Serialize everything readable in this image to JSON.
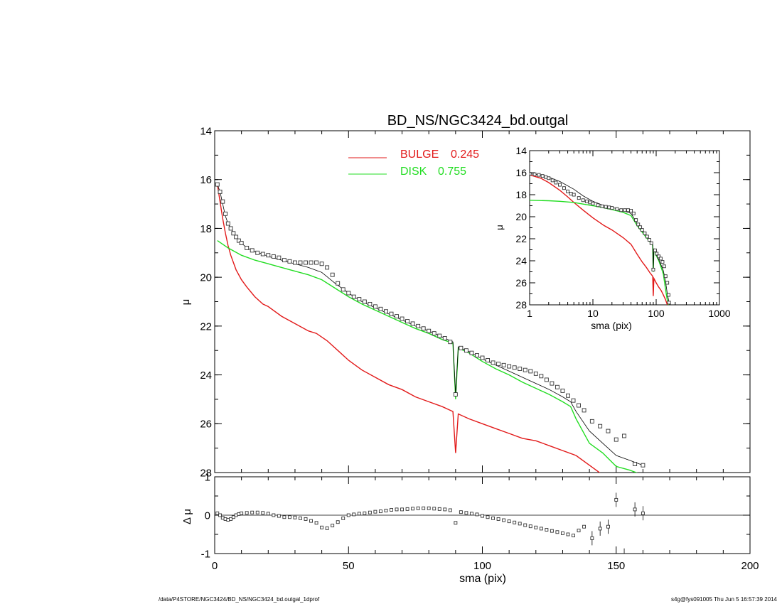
{
  "chart_data": [
    {
      "type": "line",
      "title": "BD_NS/NGC3424_bd.outgal",
      "ylabel": "μ",
      "xlim": [
        0,
        200
      ],
      "ylim": [
        28,
        14
      ],
      "y_inverted": true,
      "x_ticks": [
        "0",
        "50",
        "100",
        "150",
        "200"
      ],
      "y_ticks": [
        "14",
        "16",
        "18",
        "20",
        "22",
        "24",
        "26",
        "28"
      ],
      "legend": {
        "placement": "top-center",
        "entries": [
          {
            "label": "BULGE",
            "value": "0.245",
            "color": "#e21a1a"
          },
          {
            "label": "DISK",
            "value": "0.755",
            "color": "#22dd22"
          }
        ]
      },
      "series": [
        {
          "name": "BULGE",
          "color": "#e21a1a",
          "x": [
            1,
            2,
            3,
            4,
            5,
            6,
            8,
            10,
            12,
            15,
            18,
            20,
            25,
            30,
            35,
            38,
            42,
            46,
            50,
            55,
            60,
            65,
            70,
            75,
            80,
            85,
            89,
            90,
            91,
            95,
            100,
            105,
            110,
            115,
            120,
            125,
            130,
            135,
            140,
            145
          ],
          "y": [
            16.2,
            16.9,
            17.6,
            18.2,
            18.7,
            19.1,
            19.7,
            20.1,
            20.4,
            20.8,
            21.1,
            21.2,
            21.6,
            21.9,
            22.2,
            22.3,
            22.6,
            23.0,
            23.4,
            23.8,
            24.1,
            24.4,
            24.6,
            24.9,
            25.1,
            25.3,
            25.5,
            27.2,
            25.6,
            25.8,
            26.0,
            26.2,
            26.4,
            26.6,
            26.7,
            26.9,
            27.1,
            27.3,
            27.7,
            28.1
          ]
        },
        {
          "name": "DISK",
          "color": "#22dd22",
          "x": [
            1,
            5,
            10,
            15,
            20,
            25,
            30,
            35,
            40,
            45,
            50,
            55,
            60,
            65,
            70,
            75,
            80,
            85,
            89,
            90,
            91,
            95,
            100,
            105,
            110,
            115,
            120,
            125,
            130,
            133,
            135,
            140,
            145,
            150,
            155,
            160
          ],
          "y": [
            18.5,
            18.8,
            19.1,
            19.3,
            19.45,
            19.6,
            19.75,
            19.9,
            20.1,
            20.45,
            20.8,
            21.1,
            21.35,
            21.6,
            21.85,
            22.1,
            22.3,
            22.55,
            22.7,
            25.0,
            22.9,
            23.1,
            23.45,
            23.75,
            24.0,
            24.3,
            24.55,
            24.8,
            25.1,
            25.3,
            25.8,
            26.8,
            27.2,
            27.75,
            27.9,
            28.1
          ]
        },
        {
          "name": "",
          "color": "#000000",
          "x": [
            1,
            2,
            3,
            4,
            5,
            6,
            8,
            10,
            12,
            15,
            18,
            20,
            25,
            30,
            35,
            40,
            45,
            50,
            55,
            60,
            65,
            70,
            75,
            80,
            85,
            89,
            90,
            91,
            95,
            100,
            105,
            110,
            115,
            120,
            125,
            130,
            133,
            135,
            140,
            145,
            150,
            155,
            160
          ],
          "y": [
            16.2,
            16.5,
            17.0,
            17.5,
            17.8,
            18.0,
            18.35,
            18.6,
            18.8,
            18.95,
            19.05,
            19.15,
            19.3,
            19.45,
            19.6,
            19.8,
            20.25,
            20.65,
            21.0,
            21.25,
            21.5,
            21.75,
            22.0,
            22.2,
            22.45,
            22.65,
            24.8,
            22.85,
            23.05,
            23.35,
            23.6,
            23.85,
            24.1,
            24.35,
            24.6,
            24.9,
            25.1,
            25.5,
            26.3,
            26.8,
            27.3,
            27.5,
            27.7
          ]
        },
        {
          "name": "",
          "type": "scatter",
          "marker": "square",
          "x": [
            1,
            2,
            3,
            4,
            5,
            6,
            7,
            8,
            9,
            10,
            12,
            14,
            16,
            18,
            20,
            22,
            24,
            26,
            28,
            30,
            32,
            34,
            36,
            38,
            40,
            42,
            44,
            46,
            48,
            50,
            52,
            54,
            56,
            58,
            60,
            62,
            64,
            66,
            68,
            70,
            72,
            74,
            76,
            78,
            80,
            82,
            84,
            86,
            88,
            90,
            92,
            94,
            96,
            98,
            100,
            102,
            104,
            106,
            108,
            110,
            112,
            114,
            116,
            118,
            120,
            122,
            124,
            126,
            128,
            130,
            132,
            134,
            136,
            138,
            141,
            144,
            147,
            150,
            153,
            157,
            160
          ],
          "y": [
            16.2,
            16.5,
            16.9,
            17.4,
            17.8,
            18.0,
            18.2,
            18.35,
            18.5,
            18.6,
            18.8,
            18.9,
            19.0,
            19.05,
            19.1,
            19.15,
            19.2,
            19.3,
            19.35,
            19.4,
            19.4,
            19.4,
            19.4,
            19.4,
            19.45,
            19.6,
            19.9,
            20.25,
            20.5,
            20.65,
            20.8,
            20.9,
            21.0,
            21.1,
            21.2,
            21.3,
            21.4,
            21.5,
            21.6,
            21.7,
            21.8,
            21.9,
            22.0,
            22.1,
            22.2,
            22.3,
            22.4,
            22.5,
            22.65,
            24.8,
            22.9,
            23.0,
            23.1,
            23.2,
            23.3,
            23.4,
            23.5,
            23.55,
            23.6,
            23.65,
            23.7,
            23.75,
            23.8,
            23.85,
            23.95,
            24.05,
            24.2,
            24.35,
            24.5,
            24.65,
            24.85,
            25.05,
            25.25,
            25.45,
            25.9,
            26.1,
            26.3,
            26.65,
            26.5,
            27.65,
            27.7
          ]
        }
      ]
    },
    {
      "type": "scatter",
      "xlabel": "sma (pix)",
      "ylabel": "Δ μ",
      "xlim": [
        0,
        200
      ],
      "ylim": [
        -1,
        1
      ],
      "x_ticks": [
        "0",
        "50",
        "100",
        "150",
        "200"
      ],
      "y_ticks": [
        "1",
        "0",
        "-1"
      ],
      "series": [
        {
          "name": "",
          "x": [
            1,
            2,
            3,
            4,
            5,
            6,
            7,
            8,
            9,
            10,
            12,
            14,
            16,
            18,
            20,
            22,
            24,
            26,
            28,
            30,
            32,
            34,
            36,
            38,
            40,
            42,
            44,
            46,
            48,
            50,
            52,
            54,
            56,
            58,
            60,
            62,
            64,
            66,
            68,
            70,
            72,
            74,
            76,
            78,
            80,
            82,
            84,
            86,
            88,
            90,
            92,
            94,
            96,
            98,
            100,
            102,
            104,
            106,
            108,
            110,
            112,
            114,
            116,
            118,
            120,
            122,
            124,
            126,
            128,
            130,
            132,
            134,
            136,
            138,
            141,
            144,
            147,
            150,
            153,
            157,
            160
          ],
          "y": [
            0.05,
            0.0,
            -0.07,
            -0.1,
            -0.12,
            -0.1,
            -0.05,
            0.0,
            0.03,
            0.05,
            0.06,
            0.07,
            0.07,
            0.06,
            0.04,
            0.0,
            -0.02,
            -0.05,
            -0.05,
            -0.06,
            -0.08,
            -0.1,
            -0.15,
            -0.2,
            -0.32,
            -0.34,
            -0.27,
            -0.18,
            -0.08,
            0.0,
            0.02,
            0.04,
            0.05,
            0.07,
            0.09,
            0.1,
            0.12,
            0.14,
            0.15,
            0.15,
            0.16,
            0.17,
            0.18,
            0.18,
            0.18,
            0.17,
            0.16,
            0.15,
            0.13,
            -0.2,
            0.08,
            0.06,
            0.04,
            0.02,
            -0.02,
            -0.05,
            -0.08,
            -0.1,
            -0.13,
            -0.16,
            -0.19,
            -0.22,
            -0.26,
            -0.29,
            -0.32,
            -0.35,
            -0.38,
            -0.41,
            -0.44,
            -0.47,
            -0.5,
            -0.53,
            -0.4,
            -0.3,
            -0.6,
            -0.35,
            -0.3,
            0.4,
            -1.05,
            0.15,
            0.05
          ]
        }
      ]
    },
    {
      "type": "line",
      "xlabel": "sma (pix)",
      "ylabel": "μ",
      "x_scale": "log",
      "xlim": [
        1,
        1000
      ],
      "ylim": [
        28,
        14
      ],
      "y_inverted": true,
      "x_ticks": [
        "1",
        "10",
        "100",
        "1000"
      ],
      "y_ticks": [
        "14",
        "16",
        "18",
        "20",
        "22",
        "24",
        "26",
        "28"
      ],
      "series": [
        {
          "name": "BULGE",
          "color": "#e21a1a",
          "x": [
            1,
            1.5,
            2,
            3,
            4,
            5,
            7,
            10,
            15,
            20,
            30,
            40,
            50,
            60,
            70,
            80,
            88,
            90,
            92,
            100,
            110,
            120,
            130,
            140,
            150,
            160
          ],
          "y": [
            16.2,
            16.5,
            16.9,
            17.6,
            18.2,
            18.7,
            19.4,
            20.1,
            20.8,
            21.2,
            21.9,
            22.5,
            23.4,
            24.1,
            24.6,
            25.1,
            25.4,
            27.2,
            25.6,
            26.0,
            26.4,
            26.7,
            27.1,
            27.5,
            28.0,
            28.3
          ]
        },
        {
          "name": "DISK",
          "color": "#22dd22",
          "x": [
            1,
            2,
            3,
            5,
            7,
            10,
            15,
            20,
            30,
            40,
            50,
            60,
            70,
            80,
            88,
            90,
            92,
            100,
            110,
            120,
            130,
            140,
            150,
            160
          ],
          "y": [
            18.5,
            18.55,
            18.6,
            18.7,
            18.85,
            19.0,
            19.2,
            19.35,
            19.6,
            19.9,
            20.8,
            21.4,
            21.9,
            22.3,
            22.6,
            25.0,
            22.9,
            23.5,
            24.0,
            24.6,
            25.2,
            26.5,
            27.6,
            28.2
          ]
        },
        {
          "name": "",
          "color": "#000000",
          "x": [
            1,
            1.5,
            2,
            3,
            5,
            7,
            10,
            15,
            20,
            30,
            40,
            50,
            60,
            70,
            80,
            88,
            90,
            92,
            100,
            110,
            120,
            130,
            140,
            150,
            160
          ],
          "y": [
            16.1,
            16.2,
            16.4,
            16.8,
            17.5,
            18.1,
            18.6,
            19.0,
            19.15,
            19.45,
            19.7,
            20.6,
            21.25,
            21.75,
            22.2,
            22.6,
            24.8,
            22.9,
            23.4,
            23.9,
            24.4,
            24.9,
            25.8,
            27.0,
            27.8
          ]
        },
        {
          "name": "",
          "type": "scatter",
          "marker": "square",
          "x": [
            1,
            1.2,
            1.4,
            1.6,
            1.8,
            2,
            2.3,
            2.6,
            3,
            3.5,
            4,
            4.5,
            5,
            6,
            7,
            8,
            9,
            10,
            12,
            14,
            16,
            18,
            20,
            24,
            28,
            32,
            36,
            40,
            44,
            48,
            52,
            56,
            60,
            66,
            72,
            78,
            84,
            90,
            96,
            102,
            110,
            118,
            126,
            134,
            141,
            150,
            157,
            160
          ],
          "y": [
            16.1,
            16.15,
            16.2,
            16.3,
            16.4,
            16.5,
            16.7,
            16.9,
            17.1,
            17.4,
            17.7,
            17.9,
            18.0,
            18.3,
            18.5,
            18.6,
            18.7,
            18.8,
            18.95,
            19.05,
            19.1,
            19.15,
            19.2,
            19.3,
            19.4,
            19.4,
            19.4,
            19.45,
            19.7,
            20.3,
            20.7,
            20.95,
            21.2,
            21.5,
            21.8,
            22.1,
            22.4,
            24.8,
            23.05,
            23.35,
            23.6,
            23.8,
            24.1,
            24.5,
            25.4,
            26.0,
            27.1,
            27.8
          ]
        }
      ]
    }
  ],
  "footer": {
    "left": "/data/P4STORE/NGC3424/BD_NS/NGC3424_bd.outgal_1dprof",
    "right": "s4g@fys091005  Thu Jun  5 16:57:39 2014"
  }
}
